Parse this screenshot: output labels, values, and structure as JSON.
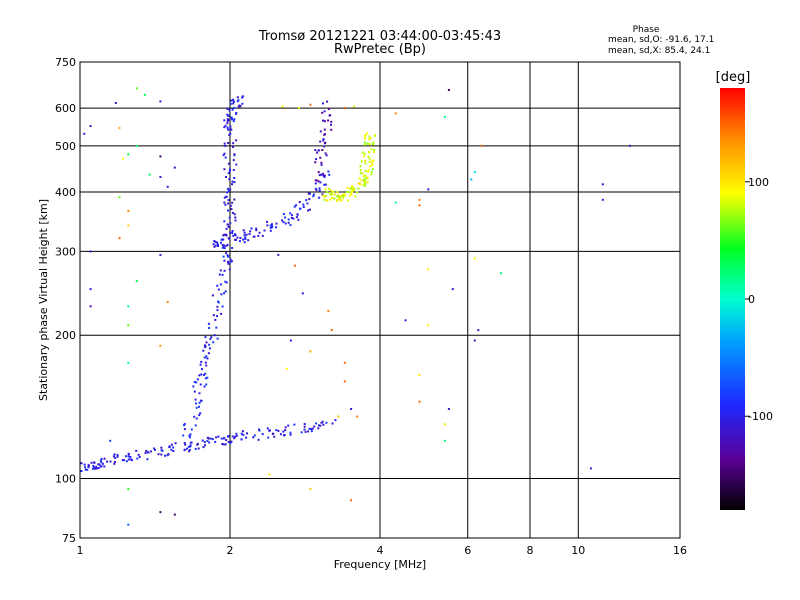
{
  "chart_data": {
    "type": "scatter",
    "title": "Tromsø 20121221 03:44:00-03:45:43",
    "subtitle": "RwPretec (Bp)",
    "xlabel": "Frequency [MHz]",
    "ylabel": "Stationary phase Virtual Height [km]",
    "x_scale": "log",
    "y_scale": "log",
    "xlim": [
      1,
      16
    ],
    "ylim": [
      75,
      750
    ],
    "x_ticks": [
      1,
      2,
      4,
      6,
      8,
      10,
      16
    ],
    "y_ticks": [
      75,
      100,
      200,
      300,
      400,
      500,
      600,
      750
    ],
    "grid": true,
    "stats": {
      "heading": "Phase",
      "line1": "mean, sd,O: -91.6, 17.1",
      "line2": "mean, sd,X:  85.4, 24.1"
    },
    "colorbar": {
      "label": "[deg]",
      "range": [
        -180,
        180
      ],
      "ticks": [
        100,
        0,
        -100
      ],
      "tick_labels": [
        "100",
        "0",
        "-100"
      ]
    },
    "traces": [
      {
        "name_hint": "E-region trace",
        "x": [
          1.0,
          1.05,
          1.1,
          1.2,
          1.3,
          1.45,
          1.6,
          1.75,
          1.9,
          2.05,
          2.3,
          2.6,
          2.9,
          3.2
        ],
        "y": [
          105,
          106,
          108,
          110,
          112,
          114,
          116,
          118,
          120,
          122,
          124,
          126,
          128,
          130
        ],
        "phase": -100
      },
      {
        "name_hint": "Low-frequency F trace",
        "x": [
          1.6,
          1.7,
          1.75,
          1.8,
          1.85,
          1.9,
          1.95,
          2.0
        ],
        "y": [
          120,
          140,
          160,
          180,
          200,
          240,
          280,
          310
        ],
        "phase": -95
      },
      {
        "name_hint": "F-cusp",
        "x": [
          1.85,
          1.95,
          2.05,
          2.2,
          2.4,
          2.6,
          2.8,
          3.0,
          3.1
        ],
        "y": [
          310,
          315,
          320,
          325,
          335,
          350,
          370,
          400,
          440
        ],
        "phase": -100
      },
      {
        "name_hint": "Vertical column near 2 MHz",
        "x": [
          2.0,
          2.0,
          2.0,
          2.0,
          2.0
        ],
        "y": [
          320,
          360,
          400,
          460,
          520
        ],
        "phase": -105
      },
      {
        "name_hint": "Top F layer echo",
        "x": [
          1.95,
          2.0,
          2.05,
          2.1
        ],
        "y": [
          540,
          570,
          600,
          630
        ],
        "phase": -100
      },
      {
        "name_hint": "Column near 3.1 MHz",
        "x": [
          3.0,
          3.05,
          3.1,
          3.15
        ],
        "y": [
          420,
          480,
          540,
          620
        ],
        "phase": -120
      },
      {
        "name_hint": "X-mode trace",
        "x": [
          3.1,
          3.2,
          3.35,
          3.5,
          3.6,
          3.7,
          3.75,
          3.78,
          3.8,
          3.8
        ],
        "y": [
          400,
          392,
          390,
          395,
          405,
          420,
          440,
          470,
          500,
          540
        ],
        "phase": 85
      }
    ],
    "scattered_points": [
      {
        "x": 1.05,
        "y": 550,
        "phase": -110
      },
      {
        "x": 1.02,
        "y": 530,
        "phase": -100
      },
      {
        "x": 1.18,
        "y": 615,
        "phase": -120
      },
      {
        "x": 1.3,
        "y": 660,
        "phase": 60
      },
      {
        "x": 1.35,
        "y": 640,
        "phase": 30
      },
      {
        "x": 1.45,
        "y": 620,
        "phase": -110
      },
      {
        "x": 1.2,
        "y": 545,
        "phase": 120
      },
      {
        "x": 1.25,
        "y": 480,
        "phase": 40
      },
      {
        "x": 1.22,
        "y": 470,
        "phase": 90
      },
      {
        "x": 1.3,
        "y": 500,
        "phase": 20
      },
      {
        "x": 1.45,
        "y": 475,
        "phase": -150
      },
      {
        "x": 1.2,
        "y": 390,
        "phase": 60
      },
      {
        "x": 1.25,
        "y": 365,
        "phase": 140
      },
      {
        "x": 1.25,
        "y": 340,
        "phase": 110
      },
      {
        "x": 1.2,
        "y": 320,
        "phase": 150
      },
      {
        "x": 1.05,
        "y": 300,
        "phase": -110
      },
      {
        "x": 1.45,
        "y": 295,
        "phase": -110
      },
      {
        "x": 1.3,
        "y": 260,
        "phase": 30
      },
      {
        "x": 1.05,
        "y": 250,
        "phase": -100
      },
      {
        "x": 1.25,
        "y": 230,
        "phase": 20
      },
      {
        "x": 1.5,
        "y": 235,
        "phase": 140
      },
      {
        "x": 1.05,
        "y": 230,
        "phase": -130
      },
      {
        "x": 1.25,
        "y": 210,
        "phase": 60
      },
      {
        "x": 1.45,
        "y": 190,
        "phase": 130
      },
      {
        "x": 1.25,
        "y": 175,
        "phase": 20
      },
      {
        "x": 1.15,
        "y": 120,
        "phase": -80
      },
      {
        "x": 1.25,
        "y": 95,
        "phase": 50
      },
      {
        "x": 1.25,
        "y": 80,
        "phase": -60
      },
      {
        "x": 1.45,
        "y": 85,
        "phase": -150
      },
      {
        "x": 1.55,
        "y": 84,
        "phase": -150
      },
      {
        "x": 2.55,
        "y": 605,
        "phase": 90
      },
      {
        "x": 2.75,
        "y": 600,
        "phase": 80
      },
      {
        "x": 2.9,
        "y": 610,
        "phase": 150
      },
      {
        "x": 3.4,
        "y": 600,
        "phase": 150
      },
      {
        "x": 3.55,
        "y": 605,
        "phase": 80
      },
      {
        "x": 4.3,
        "y": 585,
        "phase": 140
      },
      {
        "x": 5.5,
        "y": 655,
        "phase": -150
      },
      {
        "x": 5.4,
        "y": 575,
        "phase": 20
      },
      {
        "x": 6.4,
        "y": 500,
        "phase": 150
      },
      {
        "x": 6.2,
        "y": 440,
        "phase": -10
      },
      {
        "x": 6.1,
        "y": 425,
        "phase": -30
      },
      {
        "x": 5.0,
        "y": 405,
        "phase": -110
      },
      {
        "x": 4.8,
        "y": 385,
        "phase": 140
      },
      {
        "x": 4.8,
        "y": 375,
        "phase": 150
      },
      {
        "x": 4.3,
        "y": 380,
        "phase": 10
      },
      {
        "x": 5.0,
        "y": 275,
        "phase": 100
      },
      {
        "x": 6.2,
        "y": 290,
        "phase": 90
      },
      {
        "x": 7.0,
        "y": 270,
        "phase": 20
      },
      {
        "x": 5.6,
        "y": 250,
        "phase": -110
      },
      {
        "x": 6.3,
        "y": 205,
        "phase": -110
      },
      {
        "x": 6.2,
        "y": 195,
        "phase": -110
      },
      {
        "x": 5.0,
        "y": 210,
        "phase": 100
      },
      {
        "x": 4.5,
        "y": 215,
        "phase": -100
      },
      {
        "x": 4.8,
        "y": 165,
        "phase": 100
      },
      {
        "x": 4.8,
        "y": 145,
        "phase": 150
      },
      {
        "x": 5.5,
        "y": 140,
        "phase": -120
      },
      {
        "x": 5.4,
        "y": 130,
        "phase": 100
      },
      {
        "x": 5.4,
        "y": 120,
        "phase": 20
      },
      {
        "x": 3.4,
        "y": 175,
        "phase": 150
      },
      {
        "x": 3.4,
        "y": 160,
        "phase": 150
      },
      {
        "x": 3.6,
        "y": 135,
        "phase": 140
      },
      {
        "x": 3.5,
        "y": 140,
        "phase": -110
      },
      {
        "x": 3.3,
        "y": 135,
        "phase": 120
      },
      {
        "x": 3.5,
        "y": 90,
        "phase": 150
      },
      {
        "x": 2.9,
        "y": 95,
        "phase": 110
      },
      {
        "x": 2.4,
        "y": 102,
        "phase": 100
      },
      {
        "x": 2.7,
        "y": 280,
        "phase": 150
      },
      {
        "x": 2.8,
        "y": 245,
        "phase": -110
      },
      {
        "x": 2.5,
        "y": 295,
        "phase": -110
      },
      {
        "x": 2.65,
        "y": 195,
        "phase": -100
      },
      {
        "x": 2.9,
        "y": 185,
        "phase": 130
      },
      {
        "x": 2.6,
        "y": 170,
        "phase": 90
      },
      {
        "x": 3.15,
        "y": 225,
        "phase": 140
      },
      {
        "x": 3.2,
        "y": 205,
        "phase": 150
      },
      {
        "x": 12.7,
        "y": 500,
        "phase": -110
      },
      {
        "x": 11.2,
        "y": 415,
        "phase": -110
      },
      {
        "x": 11.2,
        "y": 385,
        "phase": -100
      },
      {
        "x": 10.6,
        "y": 105,
        "phase": -110
      },
      {
        "x": 1.5,
        "y": 410,
        "phase": -110
      },
      {
        "x": 1.45,
        "y": 430,
        "phase": -110
      },
      {
        "x": 1.55,
        "y": 450,
        "phase": -120
      },
      {
        "x": 1.38,
        "y": 435,
        "phase": 30
      }
    ]
  }
}
